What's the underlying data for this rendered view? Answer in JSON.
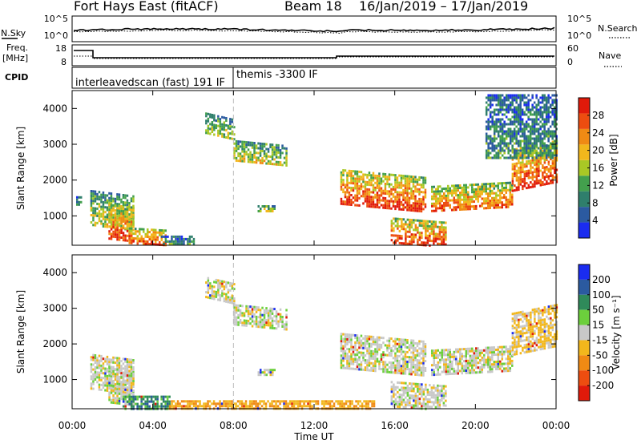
{
  "header": {
    "title": "Fort Hays East (fitACF)",
    "beam": "Beam 18",
    "dates": "16/Jan/2019 – 17/Jan/2019"
  },
  "labels": {
    "nsky": "N.Sky",
    "nsearch": "N.Search",
    "freq1": "Freq.",
    "freq2": "[MHz]",
    "nave": "Nave",
    "cpid": "CPID",
    "cpid_seg1": "interleavedscan (fast) 191 IF",
    "cpid_seg2": "themis -3300 IF",
    "noise_tick_hi": "10^5",
    "noise_tick_lo": "10^0",
    "freq_tick_hi": "18",
    "freq_tick_lo": "8",
    "nave_tick_hi": "60",
    "nave_tick_lo": "0",
    "power_label": "Power [dB]",
    "velocity_label": "Velocity [m s⁻¹]",
    "slant_range_label": "Slant Range [km]",
    "xlabel": "Time UT"
  },
  "chart_data": [
    {
      "type": "heatmap",
      "name": "power",
      "xlabel": "Time UT",
      "ylabel": "Slant Range [km]",
      "xlim": [
        0,
        24
      ],
      "ylim": [
        180,
        4500
      ],
      "x_ticks": [
        "00:00",
        "04:00",
        "08:00",
        "12:00",
        "16:00",
        "20:00",
        "00:00"
      ],
      "x_tick_values": [
        0,
        4,
        8,
        12,
        16,
        20,
        24
      ],
      "y_ticks": [
        1000,
        2000,
        3000,
        4000
      ],
      "colorbar": {
        "label": "Power [dB]",
        "ticks": [
          4,
          8,
          12,
          16,
          20,
          24,
          28
        ],
        "range": [
          0,
          32
        ],
        "colors": [
          "#1a2cf0",
          "#2b5aa0",
          "#2f7f6c",
          "#43a04d",
          "#a9c825",
          "#f2b71c",
          "#f08a14",
          "#ed4d10",
          "#e01a0a"
        ]
      },
      "features": [
        {
          "t0": 0.2,
          "t1": 0.4,
          "r0": 1300,
          "r1": 1550,
          "level": 0.3,
          "slope": 0
        },
        {
          "t0": 0.9,
          "t1": 3.0,
          "r0": 700,
          "r1": 1650,
          "level": 0.5,
          "slope": -150
        },
        {
          "t0": 1.8,
          "t1": 3.0,
          "r0": 300,
          "r1": 1300,
          "level": 0.8,
          "slope": -80
        },
        {
          "t0": 2.8,
          "t1": 4.6,
          "r0": 180,
          "r1": 650,
          "level": 0.85,
          "slope": -60
        },
        {
          "t0": 4.4,
          "t1": 6.0,
          "r0": 180,
          "r1": 450,
          "level": 0.35,
          "slope": 0
        },
        {
          "t0": 6.6,
          "t1": 8.0,
          "r0": 3200,
          "r1": 3800,
          "level": 0.45,
          "slope": -180
        },
        {
          "t0": 8.0,
          "t1": 10.6,
          "r0": 2500,
          "r1": 3050,
          "level": 0.5,
          "slope": -140
        },
        {
          "t0": 9.2,
          "t1": 10.0,
          "r0": 1100,
          "r1": 1300,
          "level": 0.6,
          "slope": 0
        },
        {
          "t0": 13.3,
          "t1": 17.5,
          "r0": 1200,
          "r1": 2200,
          "level": 0.85,
          "slope": -220
        },
        {
          "t0": 15.8,
          "t1": 18.5,
          "r0": 180,
          "r1": 900,
          "level": 0.85,
          "slope": -120
        },
        {
          "t0": 17.8,
          "t1": 21.8,
          "r0": 1200,
          "r1": 1900,
          "level": 0.75,
          "slope": 120
        },
        {
          "t0": 21.8,
          "t1": 24.0,
          "r0": 1800,
          "r1": 3000,
          "level": 0.85,
          "slope": 250
        },
        {
          "t0": 20.5,
          "t1": 24.0,
          "r0": 2600,
          "r1": 4400,
          "level": 0.3,
          "slope": 0
        }
      ]
    },
    {
      "type": "heatmap",
      "name": "velocity",
      "xlabel": "Time UT",
      "ylabel": "Slant Range [km]",
      "xlim": [
        0,
        24
      ],
      "ylim": [
        180,
        4500
      ],
      "x_ticks": [
        "00:00",
        "04:00",
        "08:00",
        "12:00",
        "16:00",
        "20:00",
        "00:00"
      ],
      "x_tick_values": [
        0,
        4,
        8,
        12,
        16,
        20,
        24
      ],
      "y_ticks": [
        1000,
        2000,
        3000,
        4000
      ],
      "colorbar": {
        "label": "Velocity [m s⁻¹]",
        "ticks": [
          200,
          100,
          50,
          15,
          -15,
          -50,
          -100,
          -200
        ],
        "colors": [
          "#1a2cf0",
          "#2b5aa0",
          "#2f8a5a",
          "#6ccf3c",
          "#c8c8c8",
          "#f2b71c",
          "#f08a14",
          "#ed4d10",
          "#e01a0a"
        ]
      },
      "features": [
        {
          "t0": 0.9,
          "t1": 3.0,
          "r0": 700,
          "r1": 1650,
          "level": 0.5,
          "slope": -150
        },
        {
          "t0": 1.8,
          "t1": 3.0,
          "r0": 300,
          "r1": 1300,
          "level": 0.5,
          "slope": -80
        },
        {
          "t0": 2.5,
          "t1": 4.8,
          "r0": 180,
          "r1": 550,
          "level": 0.72,
          "slope": 0
        },
        {
          "t0": 4.8,
          "t1": 15.0,
          "r0": 180,
          "r1": 420,
          "level": 0.35,
          "slope": 0
        },
        {
          "t0": 6.6,
          "t1": 8.0,
          "r0": 3200,
          "r1": 3800,
          "level": 0.5,
          "slope": -180
        },
        {
          "t0": 8.0,
          "t1": 10.6,
          "r0": 2500,
          "r1": 3050,
          "level": 0.5,
          "slope": -140
        },
        {
          "t0": 9.2,
          "t1": 10.0,
          "r0": 1100,
          "r1": 1300,
          "level": 0.5,
          "slope": 0
        },
        {
          "t0": 13.3,
          "t1": 17.5,
          "r0": 1200,
          "r1": 2200,
          "level": 0.5,
          "slope": -220
        },
        {
          "t0": 15.8,
          "t1": 18.5,
          "r0": 180,
          "r1": 900,
          "level": 0.5,
          "slope": -120
        },
        {
          "t0": 17.8,
          "t1": 21.8,
          "r0": 1200,
          "r1": 1900,
          "level": 0.5,
          "slope": 120
        },
        {
          "t0": 21.8,
          "t1": 24.0,
          "r0": 1800,
          "r1": 3000,
          "level": 0.42,
          "slope": 250
        }
      ]
    }
  ]
}
